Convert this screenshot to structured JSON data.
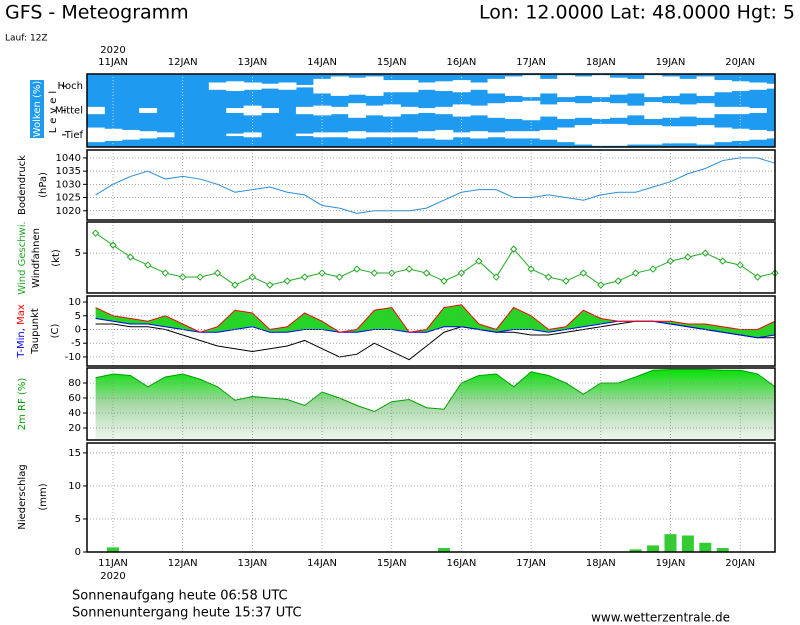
{
  "header": {
    "title": "GFS - Meteogramm",
    "location": "Lon: 12.0000 Lat: 48.0000 Hgt: 5",
    "run": "Lauf: 12Z"
  },
  "footer": {
    "sunrise": "Sonnenaufgang heute 06:58 UTC",
    "sunset": "Sonnenuntergang heute 15:37 UTC",
    "source": "www.wetterzentrale.de"
  },
  "chart_data": [
    {
      "type": "cloud",
      "y_label": "Wolken (%)",
      "level_label": "Level",
      "year": "2020",
      "background": "#1e9bf0",
      "categories": [
        null,
        "11JAN",
        null,
        null,
        null,
        "12JAN",
        null,
        null,
        null,
        "13JAN",
        null,
        null,
        null,
        "14JAN",
        null,
        null,
        null,
        "15JAN",
        null,
        null,
        null,
        "16JAN",
        null,
        null,
        null,
        "17JAN",
        null,
        null,
        null,
        "18JAN",
        null,
        null,
        null,
        "19JAN",
        null,
        null,
        null,
        "20JAN",
        null,
        null
      ],
      "ylim": [
        0,
        100
      ],
      "series": [
        {
          "name": "Hoch",
          "color": "#ffffff",
          "values": [
            0,
            0,
            0,
            0,
            0,
            0,
            0,
            30,
            40,
            30,
            20,
            30,
            10,
            60,
            80,
            70,
            80,
            50,
            50,
            30,
            40,
            50,
            30,
            60,
            80,
            90,
            60,
            90,
            80,
            90,
            70,
            60,
            90,
            80,
            60,
            80,
            50,
            40,
            30,
            20
          ]
        },
        {
          "name": "Mittel",
          "color": "#ffffff",
          "values": [
            30,
            0,
            0,
            20,
            0,
            0,
            0,
            0,
            20,
            40,
            20,
            0,
            30,
            40,
            30,
            60,
            40,
            50,
            30,
            20,
            30,
            50,
            40,
            60,
            70,
            80,
            50,
            70,
            60,
            70,
            60,
            40,
            70,
            60,
            50,
            60,
            30,
            30,
            20,
            0
          ]
        },
        {
          "name": "Tief",
          "color": "#ffffff",
          "values": [
            60,
            50,
            40,
            30,
            20,
            0,
            0,
            0,
            10,
            20,
            0,
            0,
            10,
            20,
            20,
            30,
            20,
            20,
            20,
            30,
            40,
            20,
            30,
            20,
            30,
            30,
            40,
            60,
            80,
            90,
            90,
            80,
            80,
            70,
            70,
            80,
            60,
            50,
            40,
            30
          ]
        }
      ]
    },
    {
      "type": "line",
      "y_label": "Bodendruck",
      "unit": "(hPa)",
      "color": "#2a8fd8",
      "ylim": [
        1016.5,
        1043
      ],
      "yticks": [
        1020,
        1025,
        1030,
        1035,
        1040
      ],
      "grid": true,
      "values": [
        1026,
        1030,
        1033,
        1035,
        1032,
        1033,
        1032,
        1030,
        1027,
        1028,
        1029,
        1027,
        1026,
        1022,
        1021,
        1019,
        1020,
        1020,
        1020,
        1021,
        1024,
        1027,
        1028,
        1028,
        1025,
        1025,
        1026,
        1025,
        1024,
        1026,
        1027,
        1027,
        1029,
        1031,
        1034,
        1036,
        1039,
        1040,
        1040,
        1038
      ]
    },
    {
      "type": "wind",
      "y_label": "Windfahnen",
      "unit": "(kt)",
      "ylim": [
        0,
        8.9
      ],
      "yticks": [
        5
      ],
      "grid": true,
      "series": [
        {
          "name": "Wind Geschwi.",
          "color": "#22aa22",
          "values": [
            7.5,
            6,
            4.5,
            3.5,
            2.5,
            2,
            2,
            2.5,
            1,
            2,
            1,
            1.5,
            2,
            2.5,
            2,
            3,
            2.5,
            2.5,
            3,
            2.5,
            1.5,
            2.5,
            4,
            2,
            5.5,
            3,
            2,
            1.5,
            2.5,
            1,
            1.5,
            2.5,
            3,
            4,
            4.5,
            5,
            4,
            3.5,
            2,
            2.5
          ]
        }
      ]
    },
    {
      "type": "temperature",
      "unit": "(C)",
      "fill_color": "#00cc00",
      "ylim": [
        -13.3,
        12.2
      ],
      "yticks": [
        -10,
        -5,
        0,
        5,
        10
      ],
      "grid": true,
      "series": [
        {
          "name": "T-Min,",
          "color": "#0000ff",
          "values": [
            4,
            3,
            2,
            2,
            1,
            0,
            -1,
            -1,
            0,
            1,
            -1,
            -1,
            0,
            0,
            -1,
            -1,
            0,
            0,
            -1,
            -1,
            1,
            1,
            0,
            -1,
            0,
            0,
            -1,
            0,
            1,
            2,
            3,
            3,
            3,
            2,
            1,
            0,
            -1,
            -2,
            -3,
            -2
          ]
        },
        {
          "name": "Max",
          "color": "#ff0000",
          "values": [
            8,
            5,
            4,
            3,
            5,
            2,
            -1,
            1,
            7,
            6,
            0,
            1,
            6,
            3,
            -1,
            0,
            7,
            8,
            -1,
            0,
            8,
            9,
            2,
            0,
            8,
            5,
            0,
            1,
            7,
            4,
            3,
            3,
            3,
            3,
            2,
            2,
            1,
            0,
            0,
            3
          ]
        },
        {
          "name": "Taupunkt",
          "color": "#000000",
          "values": [
            2,
            2,
            1,
            1,
            0,
            -2,
            -4,
            -6,
            -7,
            -8,
            -7,
            -6,
            -4,
            -7,
            -10,
            -9,
            -5,
            -8,
            -11,
            -6,
            -1,
            1,
            0,
            -1,
            -1,
            -2,
            -2,
            -1,
            0,
            1,
            2,
            3,
            3,
            2,
            1,
            0,
            -1,
            -2,
            -3,
            -3
          ]
        }
      ]
    },
    {
      "type": "area",
      "y_label": "2m RF (%)",
      "color": "#00a000",
      "ylim": [
        4,
        100
      ],
      "yticks": [
        20,
        40,
        60,
        80
      ],
      "grid": true,
      "values": [
        87,
        92,
        90,
        75,
        88,
        92,
        85,
        75,
        57,
        62,
        60,
        58,
        50,
        68,
        60,
        50,
        42,
        55,
        58,
        47,
        45,
        80,
        90,
        92,
        75,
        95,
        90,
        80,
        65,
        80,
        80,
        88,
        97,
        98,
        98,
        98,
        97,
        97,
        92,
        75
      ]
    },
    {
      "type": "bar",
      "y_label": "Niederschlag",
      "unit": "(mm)",
      "year": "2020",
      "color": "#33cc33",
      "ylim": [
        0,
        16.5
      ],
      "yticks": [
        0,
        5,
        10,
        15
      ],
      "grid": true,
      "categories": [
        null,
        "11JAN",
        null,
        null,
        null,
        "12JAN",
        null,
        null,
        null,
        "13JAN",
        null,
        null,
        null,
        "14JAN",
        null,
        null,
        null,
        "15JAN",
        null,
        null,
        null,
        "16JAN",
        null,
        null,
        null,
        "17JAN",
        null,
        null,
        null,
        "18JAN",
        null,
        null,
        null,
        "19JAN",
        null,
        null,
        null,
        "20JAN",
        null,
        null
      ],
      "values": [
        0,
        0.7,
        0,
        0,
        0,
        0,
        0,
        0,
        0,
        0,
        0,
        0,
        0,
        0,
        0,
        0,
        0,
        0,
        0,
        0,
        0.6,
        0,
        0,
        0,
        0,
        0,
        0,
        0,
        0,
        0,
        0,
        0.4,
        1,
        2.7,
        2.5,
        1.4,
        0.6,
        0,
        0,
        0
      ]
    }
  ]
}
